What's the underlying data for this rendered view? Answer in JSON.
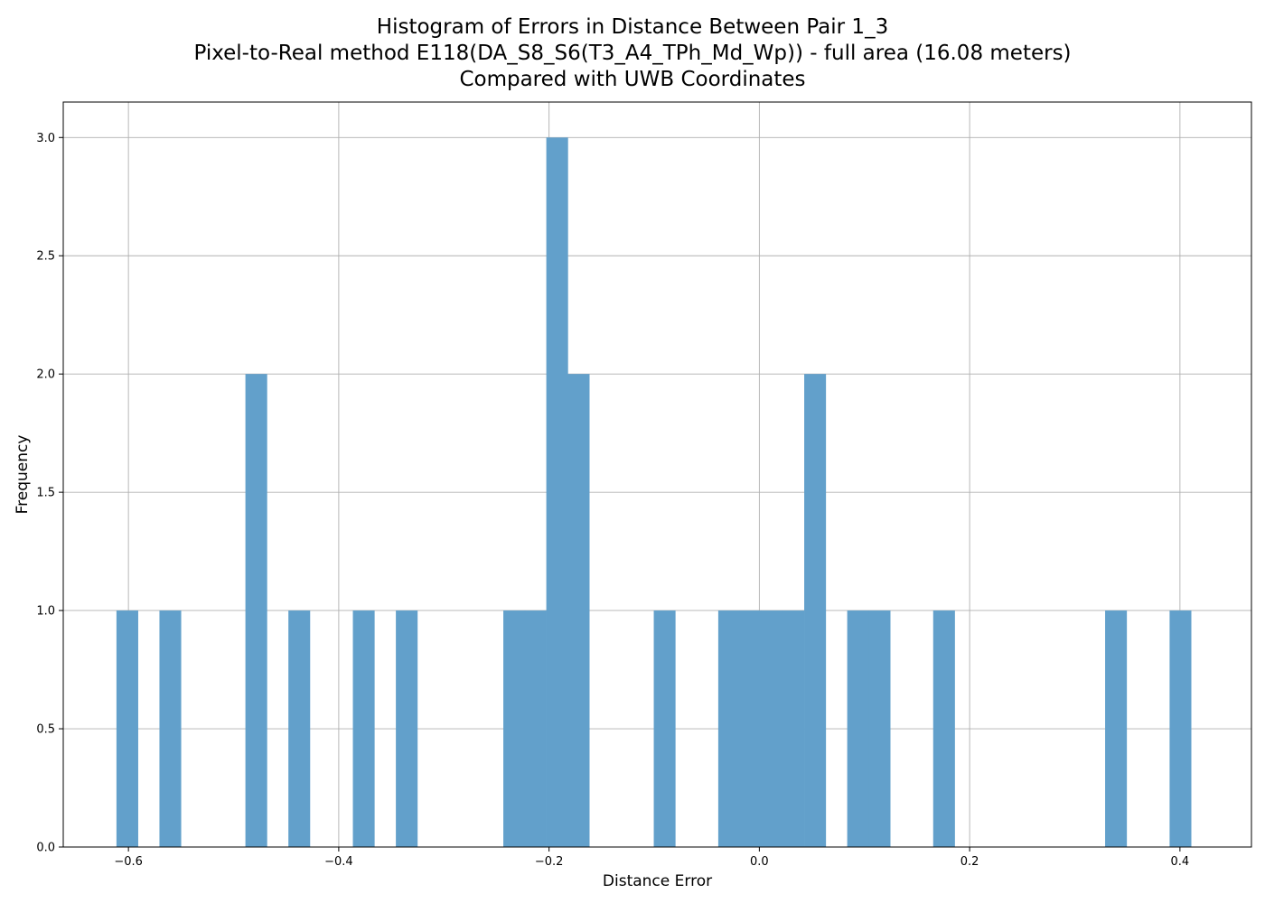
{
  "chart_data": {
    "type": "bar",
    "title_lines": [
      "Histogram of Errors in Distance Between Pair 1_3",
      "Pixel-to-Real method E118(DA_S8_S6(T3_A4_TPh_Md_Wp)) - full area (16.08 meters)",
      "Compared with UWB Coordinates"
    ],
    "xlabel": "Distance Error",
    "ylabel": "Frequency",
    "xlim": [
      -0.662,
      0.468
    ],
    "ylim": [
      0,
      3.15
    ],
    "xticks": [
      -0.6,
      -0.4,
      -0.2,
      0.0,
      0.2,
      0.4
    ],
    "xtick_labels": [
      "−0.6",
      "−0.4",
      "−0.2",
      "0.0",
      "0.2",
      "0.4"
    ],
    "yticks": [
      0.0,
      0.5,
      1.0,
      1.5,
      2.0,
      2.5,
      3.0
    ],
    "ytick_labels": [
      "0.0",
      "0.5",
      "1.0",
      "1.5",
      "2.0",
      "2.5",
      "3.0"
    ],
    "grid": true,
    "bar_color": "#62a0cb",
    "bin_start": -0.6114,
    "bin_width": 0.02044,
    "counts": [
      1,
      0,
      1,
      0,
      0,
      0,
      2,
      0,
      1,
      0,
      0,
      1,
      0,
      1,
      0,
      0,
      0,
      0,
      1,
      1,
      3,
      2,
      0,
      0,
      0,
      1,
      0,
      0,
      1,
      1,
      1,
      1,
      2,
      0,
      1,
      1,
      0,
      0,
      1,
      0,
      0,
      0,
      0,
      0,
      0,
      0,
      1,
      0,
      0,
      1
    ]
  }
}
